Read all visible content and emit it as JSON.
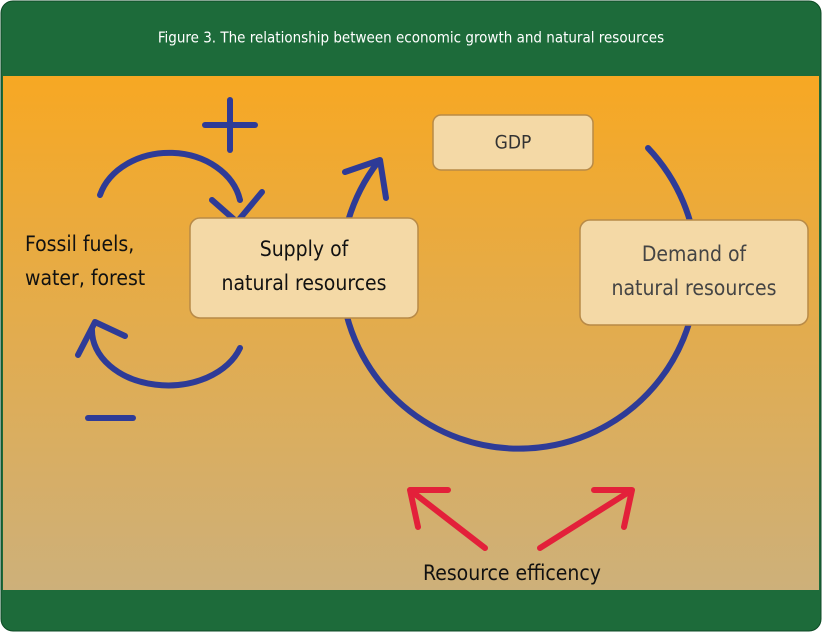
{
  "header": {
    "title": "Figure 3.  The relationship between economic growth and natural resources"
  },
  "nodes": [
    {
      "label": "+"
    },
    {
      "label": "Fossil fuels,\nwater, forest"
    },
    {
      "label": "−"
    },
    {
      "label": "Supply of\nnatural resources"
    },
    {
      "label": "GDP"
    },
    {
      "label": "Demand of\nnatural resources"
    },
    {
      "label": "Resource efficency"
    }
  ]
}
